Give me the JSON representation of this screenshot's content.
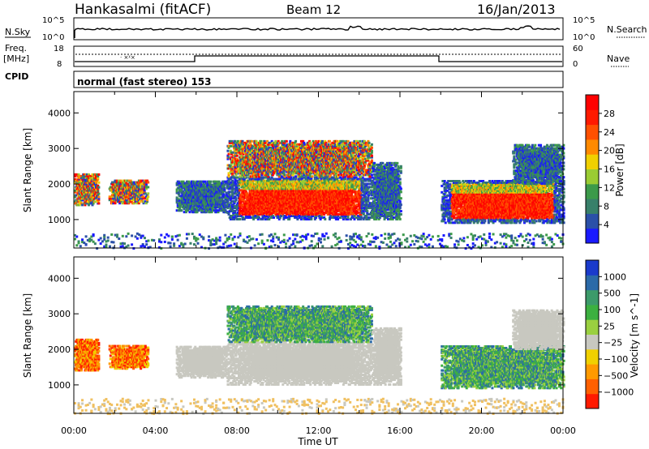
{
  "header": {
    "station": "Hankasalmi (fitACF)",
    "beam": "Beam 12",
    "date": "16/Jan/2013"
  },
  "strip_panels": {
    "nsky": {
      "label": "N.Sky",
      "left_ticks": [
        "10^5",
        "10^0"
      ],
      "right_ticks": [
        "10^5",
        "10^0"
      ],
      "right_label": "N.Search"
    },
    "freq": {
      "label_top": "Freq.",
      "label_unit": "[MHz]",
      "left_ticks": [
        "18",
        "8"
      ],
      "right_ticks": [
        "60",
        "0"
      ],
      "right_label": "Nave"
    },
    "cpid": {
      "label": "CPID",
      "text": "normal (fast stereo) 153"
    }
  },
  "colors": {
    "power": [
      "#1a1aff",
      "#2b50a8",
      "#38806a",
      "#3c9a4a",
      "#9acc33",
      "#f0d000",
      "#ff8a00",
      "#ff5000",
      "#ff1a00",
      "#ff0000"
    ],
    "velocity": [
      "#ff1a00",
      "#ff6000",
      "#ff9a00",
      "#f0d000",
      "#c8c8c0",
      "#9ad040",
      "#3cb040",
      "#3c9a6a",
      "#2b6aa8",
      "#1a3acc"
    ],
    "ground_scatter": "#c8c8c0"
  },
  "chart_data": [
    {
      "type": "heatmap",
      "name": "Power",
      "ylabel": "Slant Range [km]",
      "xlabel": "",
      "y_ticks": [
        1000,
        2000,
        3000,
        4000
      ],
      "ylim": [
        200,
        4600
      ],
      "xlim": [
        0,
        24
      ],
      "x_tick_hours": [
        0,
        2,
        4,
        6,
        8,
        10,
        12,
        14,
        16,
        18,
        20,
        22,
        24
      ],
      "colorbar": {
        "label": "Power [dB]",
        "ticks": [
          "28",
          "24",
          "20",
          "16",
          "12",
          "8",
          "4"
        ],
        "range": [
          0,
          30
        ]
      },
      "regions": [
        {
          "t": [
            0.0,
            1.2
          ],
          "r": [
            1400,
            2300
          ],
          "level": "mixed"
        },
        {
          "t": [
            1.7,
            3.6
          ],
          "r": [
            1450,
            2100
          ],
          "level": "mixed"
        },
        {
          "t": [
            5.0,
            7.5
          ],
          "r": [
            1200,
            2100
          ],
          "level": "low"
        },
        {
          "t": [
            7.5,
            14.6
          ],
          "r": [
            1000,
            2200
          ],
          "level": "high"
        },
        {
          "t": [
            7.5,
            14.6
          ],
          "r": [
            2200,
            3200
          ],
          "level": "mixed"
        },
        {
          "t": [
            14.6,
            16.0
          ],
          "r": [
            1000,
            2600
          ],
          "level": "low"
        },
        {
          "t": [
            18.0,
            24.0
          ],
          "r": [
            900,
            2100
          ],
          "level": "high"
        },
        {
          "t": [
            21.5,
            24.0
          ],
          "r": [
            2000,
            3100
          ],
          "level": "low"
        }
      ]
    },
    {
      "type": "heatmap",
      "name": "Velocity",
      "ylabel": "Slant Range [km]",
      "xlabel": "Time UT",
      "y_ticks": [
        1000,
        2000,
        3000,
        4000
      ],
      "ylim": [
        200,
        4600
      ],
      "xlim": [
        0,
        24
      ],
      "x_ticks": [
        "00:00",
        "04:00",
        "08:00",
        "12:00",
        "16:00",
        "20:00",
        "00:00"
      ],
      "x_tick_hours": [
        0,
        2,
        4,
        6,
        8,
        10,
        12,
        14,
        16,
        18,
        20,
        22,
        24
      ],
      "colorbar": {
        "label": "Velocity [m s^-1]",
        "ticks": [
          "1000",
          "500",
          "100",
          "25",
          "−25",
          "−100",
          "−500",
          "−1000"
        ],
        "range": [
          -1000,
          1000
        ]
      },
      "regions": [
        {
          "t": [
            0.0,
            1.2
          ],
          "r": [
            1400,
            2300
          ],
          "level": "negative"
        },
        {
          "t": [
            1.7,
            3.6
          ],
          "r": [
            1450,
            2100
          ],
          "level": "negative"
        },
        {
          "t": [
            5.0,
            7.5
          ],
          "r": [
            1200,
            2100
          ],
          "level": "ground"
        },
        {
          "t": [
            7.5,
            14.6
          ],
          "r": [
            1000,
            2200
          ],
          "level": "ground"
        },
        {
          "t": [
            7.5,
            14.6
          ],
          "r": [
            2200,
            3200
          ],
          "level": "positive"
        },
        {
          "t": [
            14.6,
            16.0
          ],
          "r": [
            1000,
            2600
          ],
          "level": "ground"
        },
        {
          "t": [
            18.0,
            24.0
          ],
          "r": [
            900,
            2100
          ],
          "level": "positive"
        },
        {
          "t": [
            21.5,
            24.0
          ],
          "r": [
            2000,
            3100
          ],
          "level": "ground"
        }
      ]
    }
  ]
}
